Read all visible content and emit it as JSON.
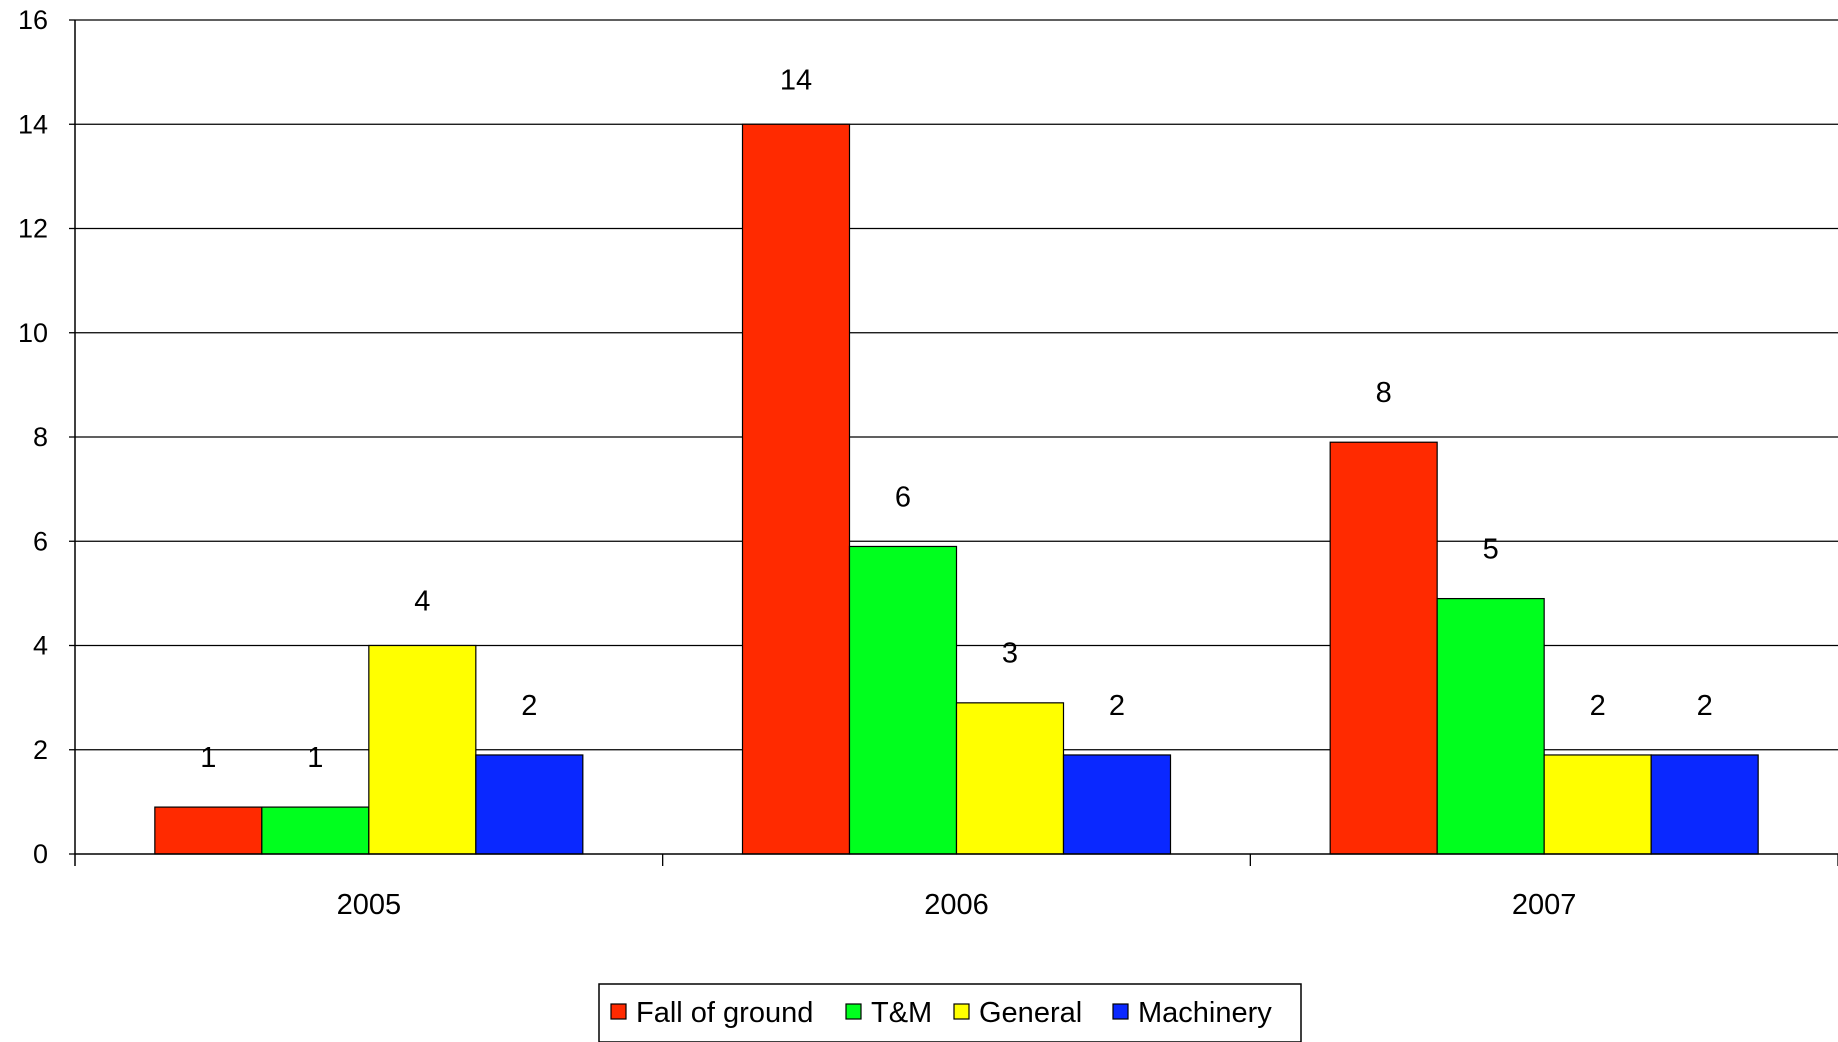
{
  "chart_data": {
    "type": "bar",
    "categories": [
      "2005",
      "2006",
      "2007"
    ],
    "series": [
      {
        "name": "Fall of ground",
        "color": "#ff2a00",
        "values": [
          1,
          14,
          8
        ],
        "labels": [
          "1",
          "14",
          "8"
        ],
        "bar_values": [
          0.9,
          14,
          7.9
        ]
      },
      {
        "name": "T&M",
        "color": "#00ff1e",
        "values": [
          1,
          6,
          5
        ],
        "labels": [
          "1",
          "6",
          "5"
        ],
        "bar_values": [
          0.9,
          5.9,
          4.9
        ]
      },
      {
        "name": "General",
        "color": "#ffff00",
        "values": [
          4,
          3,
          2
        ],
        "labels": [
          "4",
          "3",
          "2"
        ],
        "bar_values": [
          4.0,
          2.9,
          1.9
        ]
      },
      {
        "name": "Machinery",
        "color": "#0a28ff",
        "values": [
          2,
          2,
          2
        ],
        "labels": [
          "2",
          "2",
          "2"
        ],
        "bar_values": [
          1.9,
          1.9,
          1.9
        ]
      }
    ],
    "title": "",
    "xlabel": "",
    "ylabel": "",
    "ylim": [
      0,
      16
    ],
    "yticks": [
      "0",
      "2",
      "4",
      "6",
      "8",
      "10",
      "12",
      "14",
      "16"
    ],
    "grid": true,
    "legend_position": "bottom"
  }
}
